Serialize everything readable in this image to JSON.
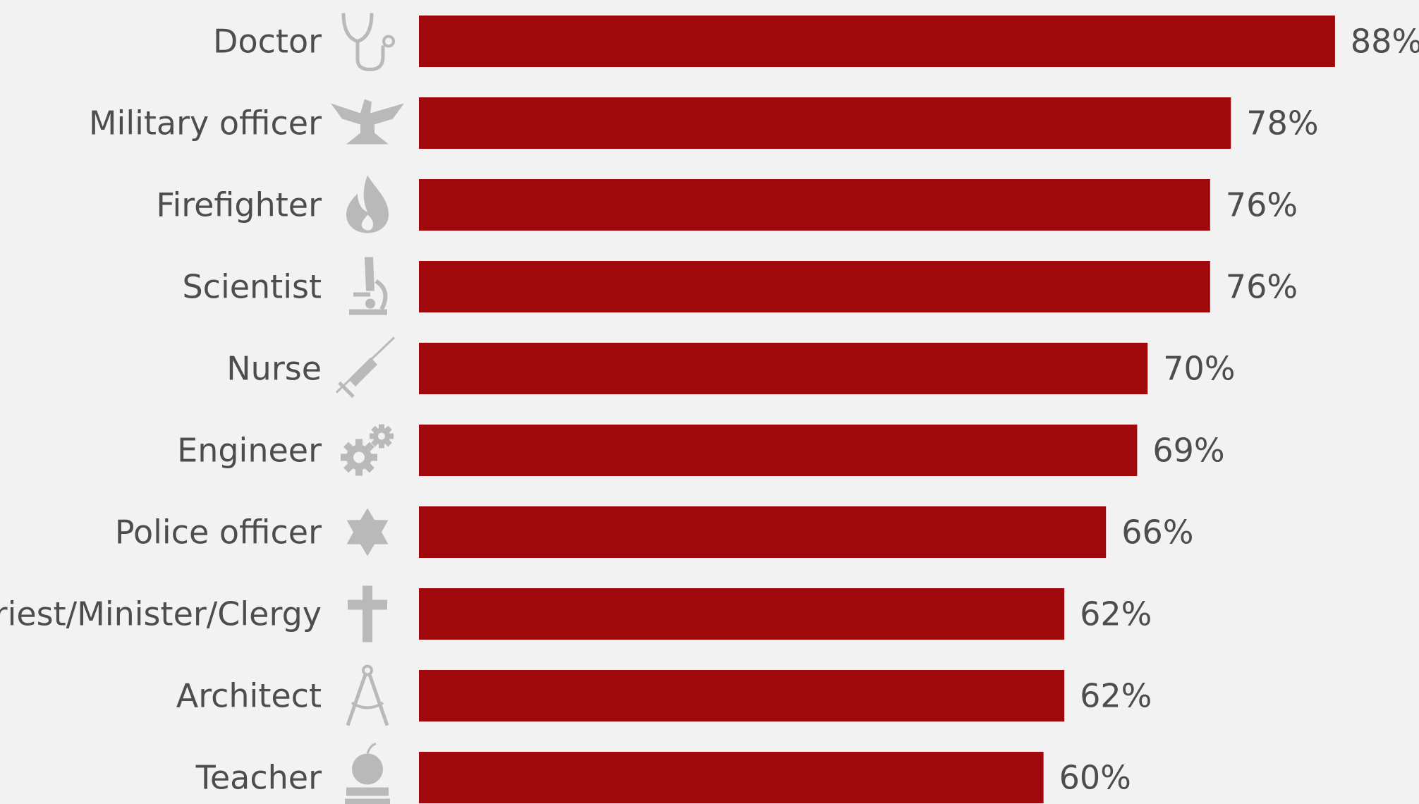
{
  "chart_data": {
    "type": "bar",
    "orientation": "horizontal",
    "categories": [
      "Doctor",
      "Military officer",
      "Firefighter",
      "Scientist",
      "Nurse",
      "Engineer",
      "Police officer",
      "Priest/Minister/Clergy",
      "Architect",
      "Teacher"
    ],
    "values": [
      88,
      78,
      76,
      76,
      70,
      69,
      66,
      62,
      62,
      60
    ],
    "value_labels": [
      "88%",
      "78%",
      "76%",
      "76%",
      "70%",
      "69%",
      "66%",
      "62%",
      "62%",
      "60%"
    ],
    "icons": [
      "stethoscope-icon",
      "eagle-icon",
      "flame-icon",
      "microscope-icon",
      "syringe-icon",
      "gears-icon",
      "sheriff-star-icon",
      "cross-icon",
      "compass-icon",
      "apple-books-icon"
    ],
    "xlim": [
      0,
      100
    ],
    "grid": false,
    "colors": {
      "bar": "#a0090b",
      "icon": "#b9b9b9",
      "text": "#4d4d4d",
      "background": "#f2f2f2"
    }
  }
}
